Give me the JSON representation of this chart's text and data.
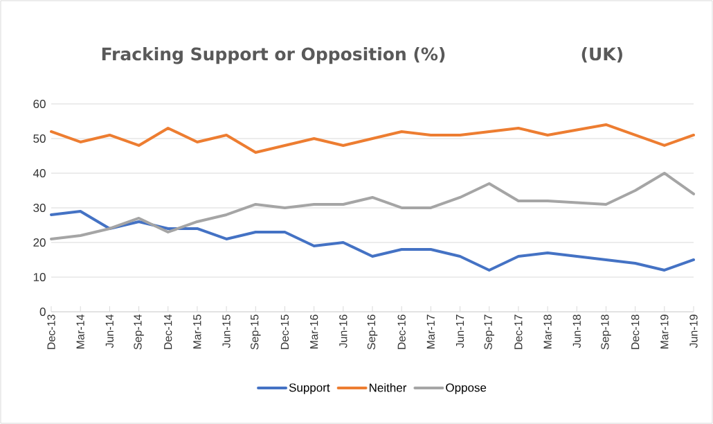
{
  "chart_data": {
    "type": "line",
    "title": "Fracking Support or Opposition (%)",
    "subtitle": "(UK)",
    "categories": [
      "Dec-13",
      "Mar-14",
      "Jun-14",
      "Sep-14",
      "Dec-14",
      "Mar-15",
      "Jun-15",
      "Sep-15",
      "Dec-15",
      "Mar-16",
      "Jun-16",
      "Sep-16",
      "Dec-16",
      "Mar-17",
      "Jun-17",
      "Sep-17",
      "Dec-17",
      "Mar-18",
      "Jun-18",
      "Sep-18",
      "Dec-18",
      "Mar-19",
      "Jun-19"
    ],
    "series": [
      {
        "name": "Support",
        "color": "#4472c4",
        "values": [
          28,
          29,
          24,
          26,
          24,
          24,
          21,
          23,
          23,
          19,
          20,
          16,
          18,
          18,
          16,
          12,
          16,
          17,
          16,
          15,
          14,
          12,
          15
        ]
      },
      {
        "name": "Neither",
        "color": "#ed7d31",
        "values": [
          52,
          49,
          51,
          48,
          53,
          49,
          51,
          46,
          48,
          50,
          48,
          50,
          52,
          51,
          51,
          52,
          53,
          51,
          52.5,
          54,
          51,
          48,
          51
        ]
      },
      {
        "name": "Oppose",
        "color": "#a5a5a5",
        "values": [
          21,
          22,
          24,
          27,
          23,
          26,
          28,
          31,
          30,
          31,
          31,
          33,
          30,
          30,
          33,
          37,
          32,
          32,
          31.5,
          31,
          35,
          40,
          34
        ]
      }
    ],
    "ylim": [
      0,
      60
    ],
    "yticks": [
      0,
      10,
      20,
      30,
      40,
      50,
      60
    ],
    "grid": "y",
    "legend": "bottom",
    "marker": "none",
    "line_style": "solid"
  }
}
